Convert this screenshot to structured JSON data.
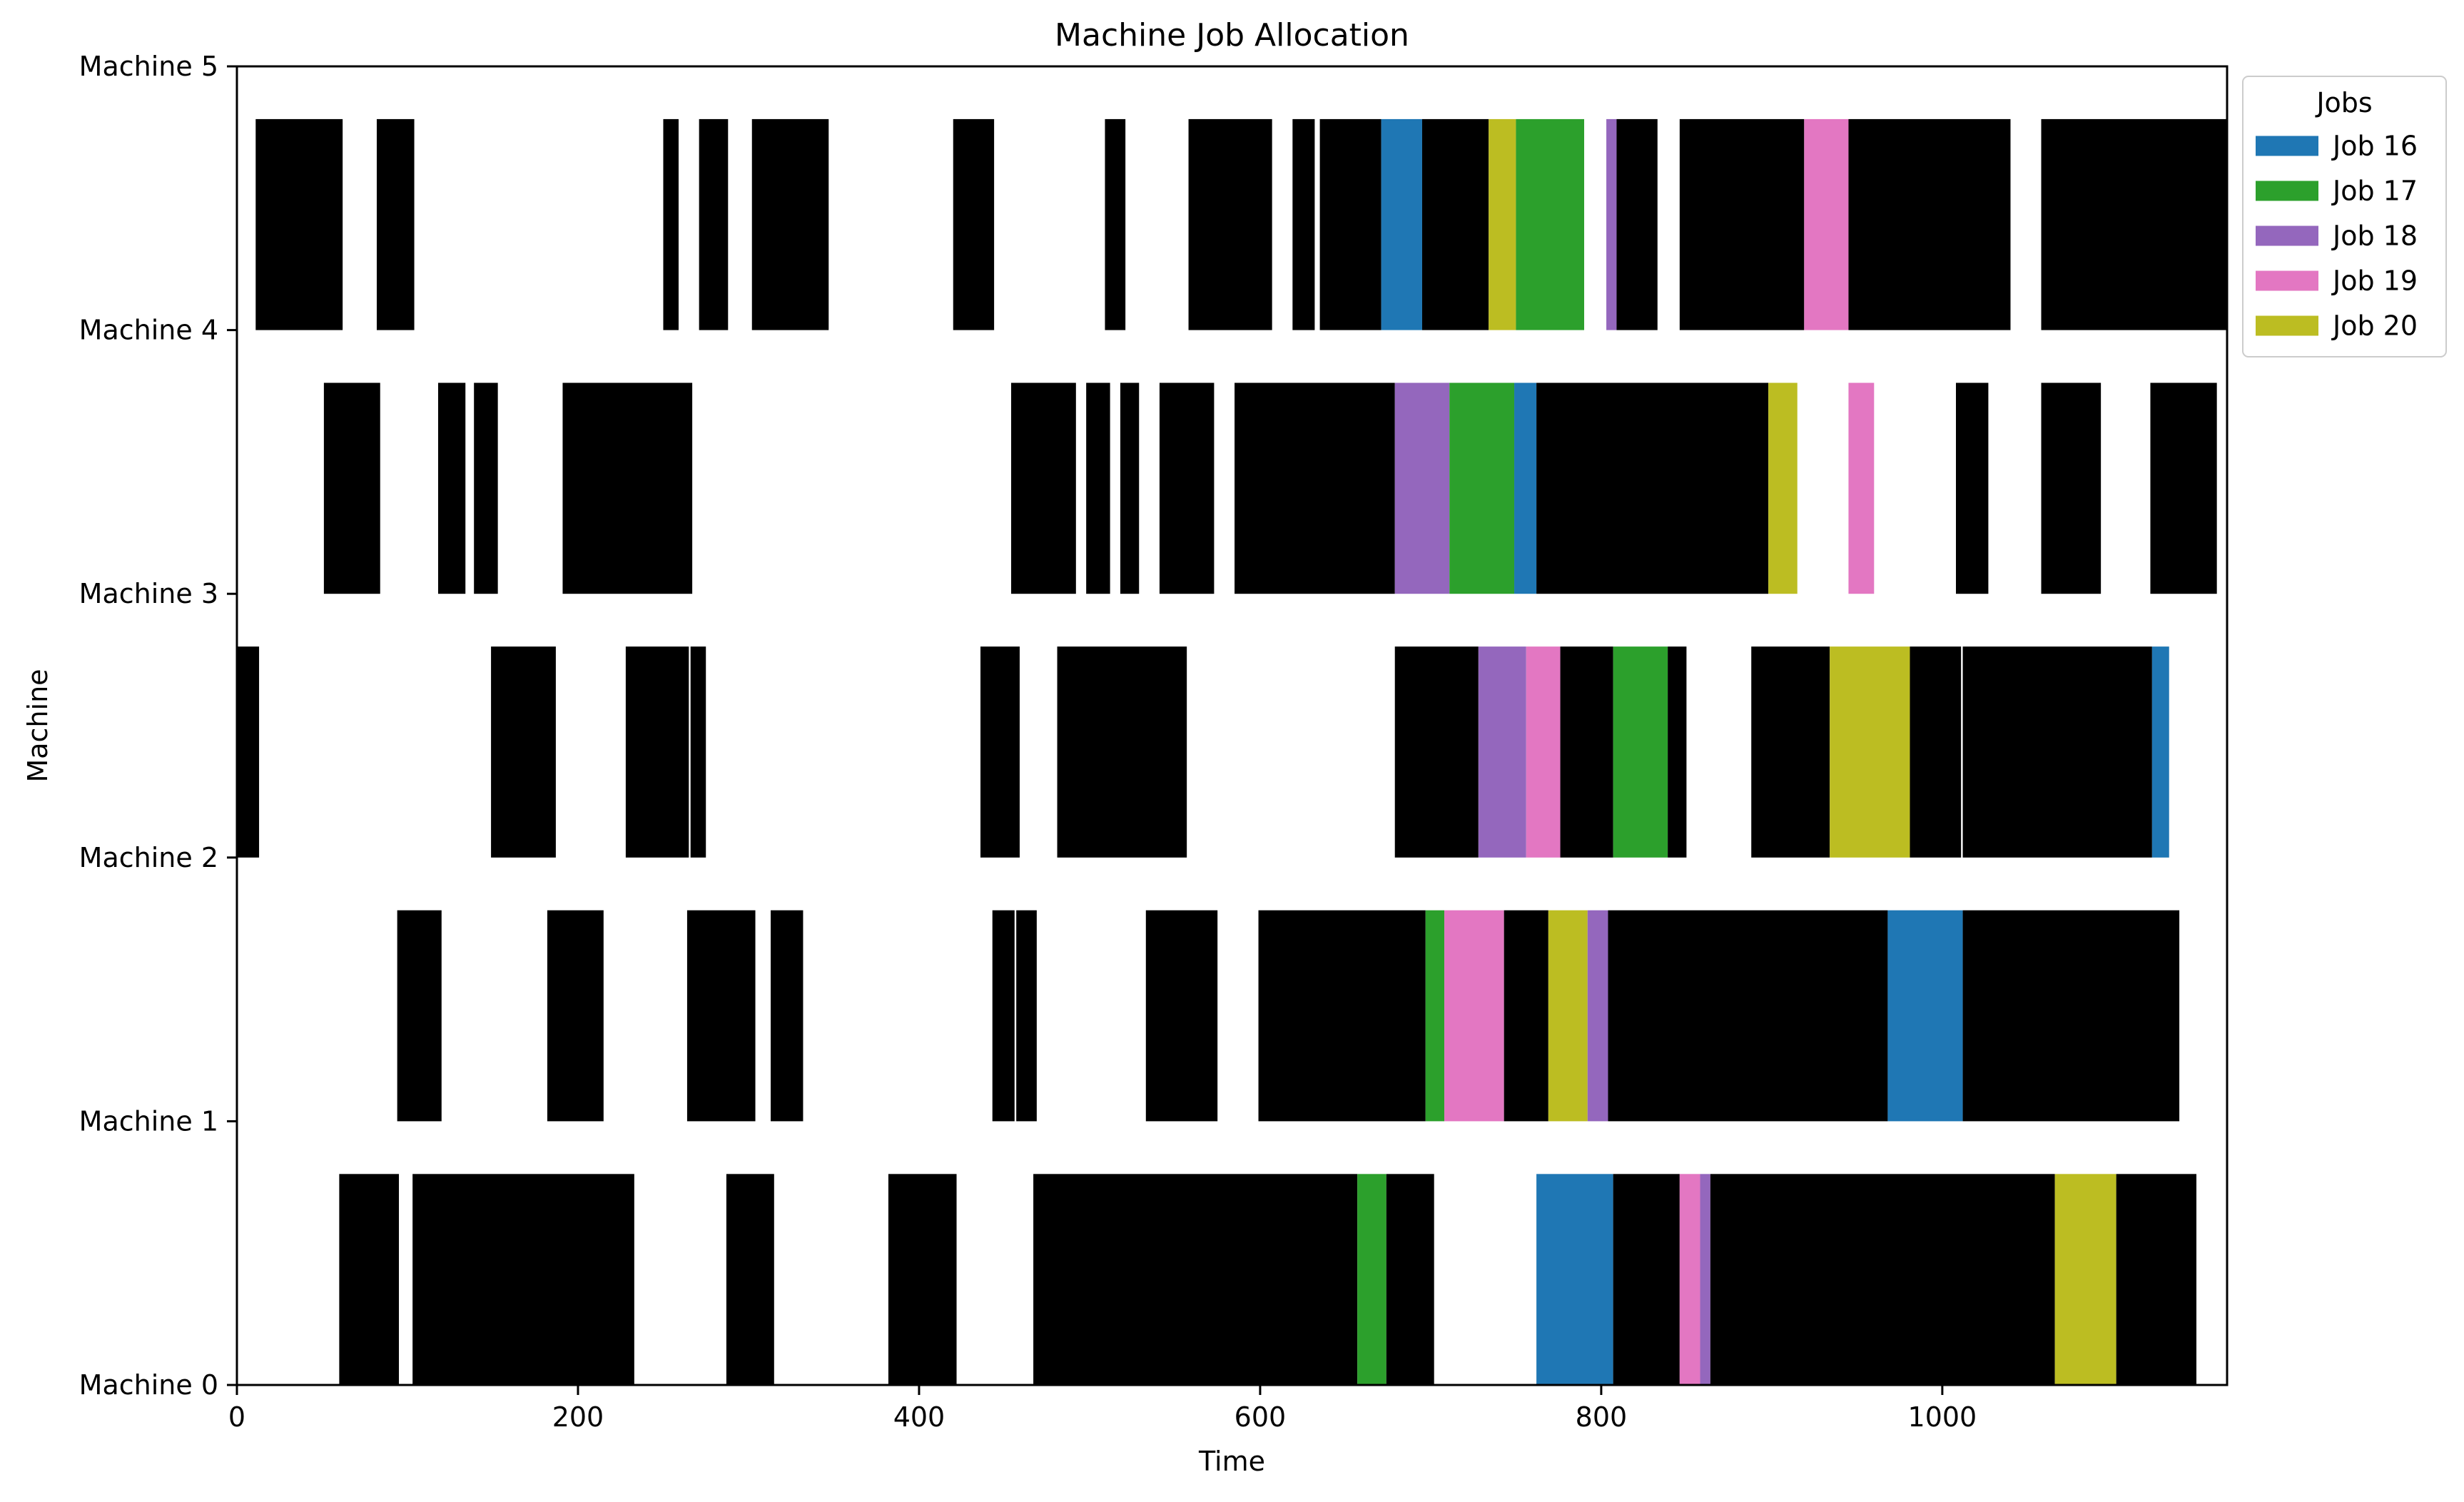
{
  "chart_data": {
    "type": "gantt",
    "title": "Machine Job Allocation",
    "xlabel": "Time",
    "ylabel": "Machine",
    "xlim": [
      0,
      1167
    ],
    "ylim": [
      0,
      5
    ],
    "xticks": [
      0,
      200,
      400,
      600,
      800,
      1000
    ],
    "yticks": [
      "Machine 0",
      "Machine 1",
      "Machine 2",
      "Machine 3",
      "Machine 4",
      "Machine 5"
    ],
    "grid": false,
    "bar_height_fraction": 0.8,
    "legend": {
      "title": "Jobs",
      "placement": "outside-top-right",
      "entries": [
        {
          "label": "Job 16",
          "color": "#1f77b4"
        },
        {
          "label": "Job 17",
          "color": "#2ca02c"
        },
        {
          "label": "Job 18",
          "color": "#9467bd"
        },
        {
          "label": "Job 19",
          "color": "#e377c2"
        },
        {
          "label": "Job 20",
          "color": "#bcbd22"
        }
      ]
    },
    "other_jobs_color": "#000000",
    "machines": [
      {
        "name": "Machine 0",
        "tasks": [
          {
            "start": 60,
            "end": 95,
            "job": "other"
          },
          {
            "start": 103,
            "end": 233,
            "job": "other"
          },
          {
            "start": 287,
            "end": 315,
            "job": "other"
          },
          {
            "start": 382,
            "end": 422,
            "job": "other"
          },
          {
            "start": 467,
            "end": 657,
            "job": "other"
          },
          {
            "start": 657,
            "end": 674,
            "job": "Job 17"
          },
          {
            "start": 674,
            "end": 702,
            "job": "other"
          },
          {
            "start": 762,
            "end": 807,
            "job": "Job 16"
          },
          {
            "start": 807,
            "end": 846,
            "job": "other"
          },
          {
            "start": 846,
            "end": 858,
            "job": "Job 19"
          },
          {
            "start": 858,
            "end": 864,
            "job": "Job 18"
          },
          {
            "start": 864,
            "end": 1066,
            "job": "other"
          },
          {
            "start": 1066,
            "end": 1102,
            "job": "Job 20"
          },
          {
            "start": 1102,
            "end": 1149,
            "job": "other"
          }
        ]
      },
      {
        "name": "Machine 1",
        "tasks": [
          {
            "start": 94,
            "end": 120,
            "job": "other"
          },
          {
            "start": 182,
            "end": 215,
            "job": "other"
          },
          {
            "start": 264,
            "end": 304,
            "job": "other"
          },
          {
            "start": 313,
            "end": 332,
            "job": "other"
          },
          {
            "start": 443,
            "end": 456,
            "job": "other"
          },
          {
            "start": 457,
            "end": 469,
            "job": "other"
          },
          {
            "start": 533,
            "end": 575,
            "job": "other"
          },
          {
            "start": 599,
            "end": 697,
            "job": "other"
          },
          {
            "start": 697,
            "end": 708,
            "job": "Job 17"
          },
          {
            "start": 708,
            "end": 743,
            "job": "Job 19"
          },
          {
            "start": 743,
            "end": 769,
            "job": "other"
          },
          {
            "start": 769,
            "end": 792,
            "job": "Job 20"
          },
          {
            "start": 792,
            "end": 804,
            "job": "Job 18"
          },
          {
            "start": 804,
            "end": 968,
            "job": "other"
          },
          {
            "start": 968,
            "end": 1012,
            "job": "Job 16"
          },
          {
            "start": 1012,
            "end": 1139,
            "job": "other"
          }
        ]
      },
      {
        "name": "Machine 2",
        "tasks": [
          {
            "start": 0,
            "end": 13,
            "job": "other"
          },
          {
            "start": 149,
            "end": 187,
            "job": "other"
          },
          {
            "start": 228,
            "end": 265,
            "job": "other"
          },
          {
            "start": 266,
            "end": 275,
            "job": "other"
          },
          {
            "start": 436,
            "end": 459,
            "job": "other"
          },
          {
            "start": 481,
            "end": 557,
            "job": "other"
          },
          {
            "start": 679,
            "end": 728,
            "job": "other"
          },
          {
            "start": 728,
            "end": 756,
            "job": "Job 18"
          },
          {
            "start": 756,
            "end": 776,
            "job": "Job 19"
          },
          {
            "start": 776,
            "end": 807,
            "job": "other"
          },
          {
            "start": 807,
            "end": 839,
            "job": "Job 17"
          },
          {
            "start": 839,
            "end": 850,
            "job": "other"
          },
          {
            "start": 888,
            "end": 934,
            "job": "other"
          },
          {
            "start": 934,
            "end": 981,
            "job": "Job 20"
          },
          {
            "start": 981,
            "end": 1011,
            "job": "other"
          },
          {
            "start": 1012,
            "end": 1123,
            "job": "other"
          },
          {
            "start": 1123,
            "end": 1133,
            "job": "Job 16"
          }
        ]
      },
      {
        "name": "Machine 3",
        "tasks": [
          {
            "start": 51,
            "end": 84,
            "job": "other"
          },
          {
            "start": 118,
            "end": 134,
            "job": "other"
          },
          {
            "start": 139,
            "end": 153,
            "job": "other"
          },
          {
            "start": 191,
            "end": 267,
            "job": "other"
          },
          {
            "start": 454,
            "end": 492,
            "job": "other"
          },
          {
            "start": 498,
            "end": 512,
            "job": "other"
          },
          {
            "start": 518,
            "end": 529,
            "job": "other"
          },
          {
            "start": 541,
            "end": 573,
            "job": "other"
          },
          {
            "start": 585,
            "end": 679,
            "job": "other"
          },
          {
            "start": 679,
            "end": 711,
            "job": "Job 18"
          },
          {
            "start": 711,
            "end": 749,
            "job": "Job 17"
          },
          {
            "start": 749,
            "end": 762,
            "job": "Job 16"
          },
          {
            "start": 762,
            "end": 898,
            "job": "other"
          },
          {
            "start": 898,
            "end": 915,
            "job": "Job 20"
          },
          {
            "start": 945,
            "end": 960,
            "job": "Job 19"
          },
          {
            "start": 1008,
            "end": 1027,
            "job": "other"
          },
          {
            "start": 1058,
            "end": 1093,
            "job": "other"
          },
          {
            "start": 1122,
            "end": 1161,
            "job": "other"
          }
        ]
      },
      {
        "name": "Machine 4",
        "tasks": [
          {
            "start": 11,
            "end": 62,
            "job": "other"
          },
          {
            "start": 82,
            "end": 104,
            "job": "other"
          },
          {
            "start": 250,
            "end": 259,
            "job": "other"
          },
          {
            "start": 271,
            "end": 288,
            "job": "other"
          },
          {
            "start": 302,
            "end": 347,
            "job": "other"
          },
          {
            "start": 420,
            "end": 444,
            "job": "other"
          },
          {
            "start": 509,
            "end": 521,
            "job": "other"
          },
          {
            "start": 558,
            "end": 607,
            "job": "other"
          },
          {
            "start": 619,
            "end": 632,
            "job": "other"
          },
          {
            "start": 635,
            "end": 671,
            "job": "other"
          },
          {
            "start": 671,
            "end": 695,
            "job": "Job 16"
          },
          {
            "start": 695,
            "end": 734,
            "job": "other"
          },
          {
            "start": 734,
            "end": 750,
            "job": "Job 20"
          },
          {
            "start": 750,
            "end": 790,
            "job": "Job 17"
          },
          {
            "start": 803,
            "end": 809,
            "job": "Job 18"
          },
          {
            "start": 809,
            "end": 833,
            "job": "other"
          },
          {
            "start": 846,
            "end": 919,
            "job": "other"
          },
          {
            "start": 919,
            "end": 945,
            "job": "Job 19"
          },
          {
            "start": 945,
            "end": 1040,
            "job": "other"
          },
          {
            "start": 1058,
            "end": 1167,
            "job": "other"
          }
        ]
      }
    ]
  }
}
